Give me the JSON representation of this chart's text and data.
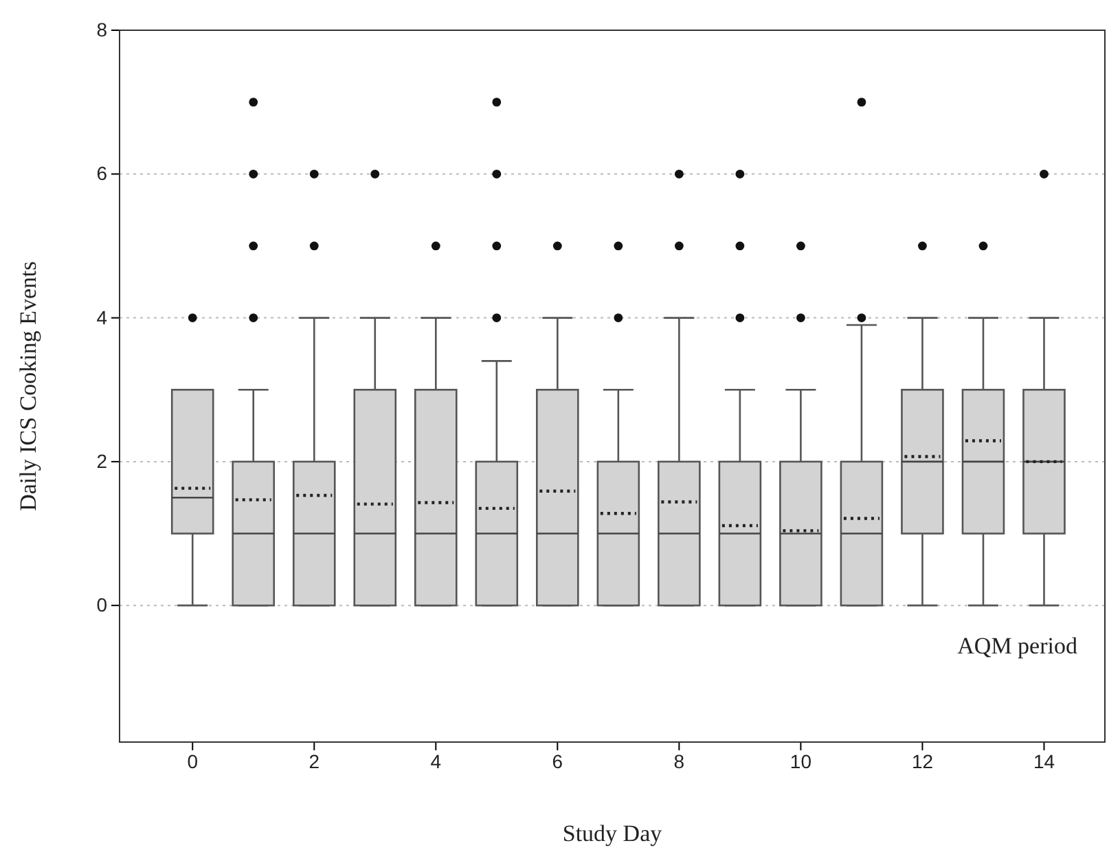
{
  "chart_data": {
    "type": "box",
    "xlabel": "Study Day",
    "ylabel": "Daily ICS Cooking Events",
    "annotations": [
      "AQM period"
    ],
    "x": [
      0,
      1,
      2,
      3,
      4,
      5,
      6,
      7,
      8,
      9,
      10,
      11,
      12,
      13,
      14
    ],
    "xlim": [
      -1.2,
      15
    ],
    "xticks": [
      0,
      2,
      4,
      6,
      8,
      10,
      12,
      14
    ],
    "ylim": [
      -1.9,
      8
    ],
    "yticks": [
      0,
      2,
      4,
      6,
      8
    ],
    "grid": "y",
    "color": "#d3d3d3",
    "boxes": [
      {
        "low": 0,
        "q1": 1,
        "median": 1.5,
        "q3": 3,
        "high": 3,
        "mean": 1.63,
        "outliers": [
          4
        ]
      },
      {
        "low": 0,
        "q1": 0,
        "median": 1,
        "q3": 2,
        "high": 3,
        "mean": 1.47,
        "outliers": [
          4,
          5,
          6,
          7
        ]
      },
      {
        "low": 0,
        "q1": 0,
        "median": 1,
        "q3": 2,
        "high": 4,
        "mean": 1.53,
        "outliers": [
          5,
          6
        ]
      },
      {
        "low": 0,
        "q1": 0,
        "median": 1,
        "q3": 3,
        "high": 4,
        "mean": 1.41,
        "outliers": [
          6
        ]
      },
      {
        "low": 0,
        "q1": 0,
        "median": 1,
        "q3": 3,
        "high": 4,
        "mean": 1.43,
        "outliers": [
          5
        ]
      },
      {
        "low": 0,
        "q1": 0,
        "median": 1,
        "q3": 2,
        "high": 3.4,
        "mean": 1.35,
        "outliers": [
          4,
          5,
          6,
          7
        ]
      },
      {
        "low": 0,
        "q1": 0,
        "median": 1,
        "q3": 3,
        "high": 4,
        "mean": 1.59,
        "outliers": [
          5
        ]
      },
      {
        "low": 0,
        "q1": 0,
        "median": 1,
        "q3": 2,
        "high": 3,
        "mean": 1.28,
        "outliers": [
          4,
          5
        ]
      },
      {
        "low": 0,
        "q1": 0,
        "median": 1,
        "q3": 2,
        "high": 4,
        "mean": 1.44,
        "outliers": [
          5,
          6
        ]
      },
      {
        "low": 0,
        "q1": 0,
        "median": 1,
        "q3": 2,
        "high": 3,
        "mean": 1.11,
        "outliers": [
          4,
          5,
          6
        ]
      },
      {
        "low": 0,
        "q1": 0,
        "median": 1,
        "q3": 2,
        "high": 3,
        "mean": 1.04,
        "outliers": [
          4,
          5
        ]
      },
      {
        "low": 0,
        "q1": 0,
        "median": 1,
        "q3": 2,
        "high": 3.9,
        "mean": 1.21,
        "outliers": [
          4,
          7
        ]
      },
      {
        "low": 0,
        "q1": 1,
        "median": 2,
        "q3": 3,
        "high": 4,
        "mean": 2.07,
        "outliers": [
          5
        ]
      },
      {
        "low": 0,
        "q1": 1,
        "median": 2,
        "q3": 3,
        "high": 4,
        "mean": 2.29,
        "outliers": [
          5
        ]
      },
      {
        "low": 0,
        "q1": 1,
        "median": 2,
        "q3": 3,
        "high": 4,
        "mean": 2.0,
        "outliers": [
          6
        ]
      }
    ]
  }
}
